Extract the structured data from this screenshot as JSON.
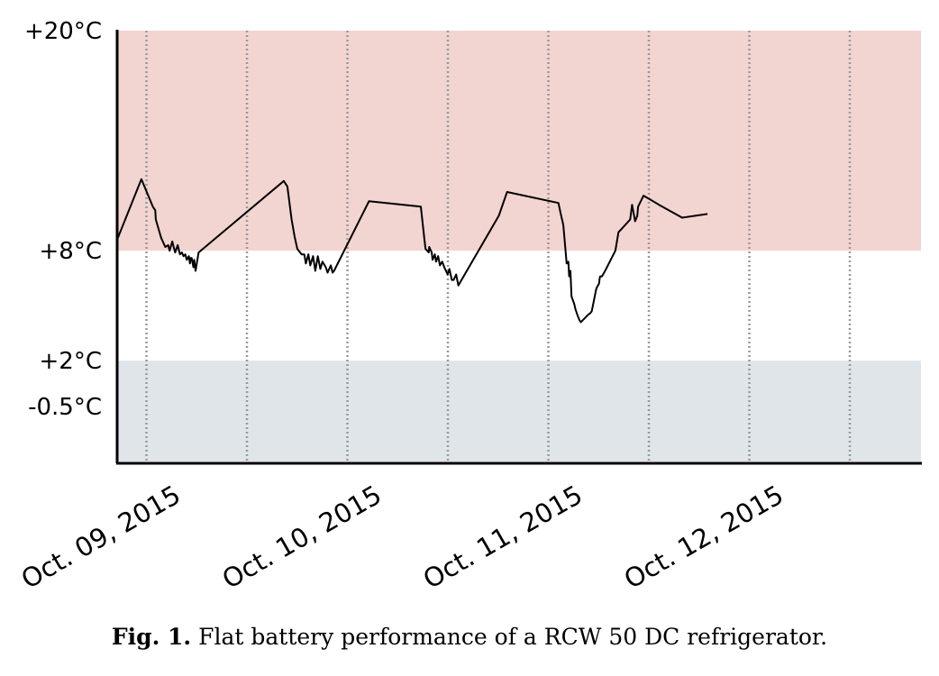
{
  "caption": {
    "label": "Fig. 1.",
    "text": "Flat battery performance of a RCW 50 DC refrigerator."
  },
  "chart_data": {
    "type": "line",
    "title": "",
    "xlabel": "",
    "ylabel": "",
    "ylim": [
      -3.5,
      20
    ],
    "y_ticks": [
      {
        "label": "+20°C",
        "value": 20
      },
      {
        "label": "+8°C",
        "value": 8
      },
      {
        "label": "+2°C",
        "value": 2
      },
      {
        "label": "-0.5°C",
        "value": -0.5
      }
    ],
    "x_ticks": [
      "Oct. 09, 2015",
      "Oct. 10, 2015",
      "Oct. 11, 2015",
      "Oct. 12, 2015"
    ],
    "bands": [
      {
        "from": 8,
        "to": 20,
        "color": "#f2d4d1"
      },
      {
        "from": -3.5,
        "to": 2,
        "color": "#e0e5ea"
      }
    ],
    "line_color": "#000000",
    "grid": "vertical dotted",
    "series": [
      {
        "x": [
          "2015-10-08T20:30",
          "2015-10-08T23:24",
          "2015-10-09T00:46",
          "2015-10-09T01:03",
          "2015-10-09T01:07",
          "2015-10-09T01:45",
          "2015-10-09T02:15",
          "2015-10-09T02:36",
          "2015-10-09T02:46",
          "2015-10-09T03:05",
          "2015-10-09T03:15",
          "2015-10-09T03:26",
          "2015-10-09T03:44",
          "2015-10-09T04:00",
          "2015-10-09T04:14",
          "2015-10-09T04:25",
          "2015-10-09T04:38",
          "2015-10-09T04:49",
          "2015-10-09T05:04",
          "2015-10-09T05:12",
          "2015-10-09T05:18",
          "2015-10-09T05:24",
          "2015-10-09T05:36",
          "2015-10-09T05:42",
          "2015-10-09T05:52",
          "2015-10-09T06:14",
          "2015-10-09T16:24",
          "2015-10-09T16:50",
          "2015-10-09T17:20",
          "2015-10-09T17:41",
          "2015-10-09T18:01",
          "2015-10-09T18:32",
          "2015-10-09T18:51",
          "2015-10-09T19:02",
          "2015-10-09T19:20",
          "2015-10-09T19:34",
          "2015-10-09T19:54",
          "2015-10-09T20:10",
          "2015-10-09T20:28",
          "2015-10-09T20:46",
          "2015-10-09T21:01",
          "2015-10-09T21:25",
          "2015-10-09T21:38",
          "2015-10-09T21:55",
          "2015-10-09T22:01",
          "2015-10-09T22:13",
          "2015-10-09T22:24",
          "2015-10-10T02:35",
          "2015-10-10T08:46",
          "2015-10-10T09:12",
          "2015-10-10T09:20",
          "2015-10-10T09:43",
          "2015-10-10T09:46",
          "2015-10-10T10:04",
          "2015-10-10T10:10",
          "2015-10-10T10:26",
          "2015-10-10T10:35",
          "2015-10-10T10:50",
          "2015-10-10T11:03",
          "2015-10-10T11:19",
          "2015-10-10T11:34",
          "2015-10-10T11:58",
          "2015-10-10T12:11",
          "2015-10-10T12:28",
          "2015-10-10T12:41",
          "2015-10-10T12:59",
          "2015-10-10T13:15",
          "2015-10-10T18:05",
          "2015-10-10T19:04",
          "2015-10-11T01:12",
          "2015-10-11T01:29",
          "2015-10-11T01:47",
          "2015-10-11T02:11",
          "2015-10-11T02:23",
          "2015-10-11T02:29",
          "2015-10-11T02:38",
          "2015-10-11T02:46",
          "2015-10-11T03:05",
          "2015-10-11T03:14",
          "2015-10-11T03:32",
          "2015-10-11T03:43",
          "2015-10-11T03:53",
          "2015-10-11T04:44",
          "2015-10-11T05:02",
          "2015-10-11T05:11",
          "2015-10-11T05:43",
          "2015-10-11T05:48",
          "2015-10-11T06:03",
          "2015-10-11T06:08",
          "2015-10-11T06:11",
          "2015-10-11T06:24",
          "2015-10-11T06:47",
          "2015-10-11T08:00",
          "2015-10-11T08:22",
          "2015-10-11T08:59",
          "2015-10-11T09:46",
          "2015-10-11T10:00",
          "2015-10-11T10:22",
          "2015-10-11T10:37",
          "2015-10-11T10:43",
          "2015-10-11T11:22",
          "2015-10-11T12:07",
          "2015-10-11T13:13",
          "2015-10-11T15:59",
          "2015-10-11T19:00"
        ],
        "y": [
          8.6,
          11.9,
          10.4,
          10.2,
          9.7,
          8.7,
          8.2,
          8.3,
          8.0,
          8.5,
          8.2,
          7.9,
          8.3,
          7.8,
          7.9,
          7.7,
          7.8,
          7.5,
          7.7,
          7.3,
          7.6,
          7.6,
          7.1,
          7.5,
          6.9,
          7.9,
          11.8,
          11.5,
          9.7,
          8.8,
          8.1,
          7.8,
          7.8,
          7.3,
          7.8,
          7.2,
          7.7,
          6.9,
          7.7,
          7.0,
          7.4,
          7.1,
          6.8,
          7.1,
          7.2,
          6.8,
          6.9,
          10.7,
          10.4,
          8.6,
          8.1,
          7.9,
          8.2,
          7.9,
          7.5,
          7.8,
          7.4,
          7.7,
          7.2,
          7.4,
          7.1,
          6.7,
          7.0,
          6.4,
          6.4,
          6.7,
          6.1,
          9.9,
          11.2,
          10.6,
          10.0,
          9.4,
          7.3,
          7.4,
          6.6,
          6.9,
          5.5,
          5.1,
          4.8,
          4.4,
          4.2,
          4.1,
          4.5,
          4.6,
          4.7,
          5.9,
          6.0,
          6.2,
          6.5,
          6.6,
          6.6,
          6.9,
          8.0,
          9.0,
          9.3,
          9.7,
          10.5,
          9.6,
          9.9,
          10.4,
          11.0,
          10.8,
          10.5,
          9.8,
          10.0
        ]
      }
    ]
  }
}
